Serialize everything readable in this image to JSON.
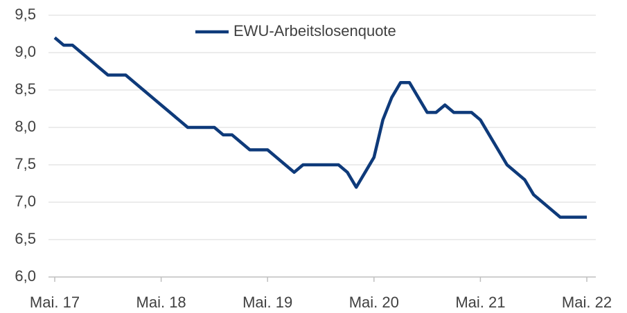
{
  "chart_data": {
    "type": "line",
    "categories": [
      "Mai. 17",
      null,
      null,
      null,
      null,
      null,
      null,
      null,
      null,
      null,
      null,
      null,
      "Mai. 18",
      null,
      null,
      null,
      null,
      null,
      null,
      null,
      null,
      null,
      null,
      null,
      "Mai. 19",
      null,
      null,
      null,
      null,
      null,
      null,
      null,
      null,
      null,
      null,
      null,
      "Mai. 20",
      null,
      null,
      null,
      null,
      null,
      null,
      null,
      null,
      null,
      null,
      null,
      "Mai. 21",
      null,
      null,
      null,
      null,
      null,
      null,
      null,
      null,
      null,
      null,
      null,
      "Mai. 22"
    ],
    "series": [
      {
        "name": "EWU-Arbeitslosenquote",
        "color": "#0e3a7a",
        "values": [
          9.2,
          9.1,
          9.1,
          9.0,
          8.9,
          8.8,
          8.7,
          8.7,
          8.7,
          8.6,
          8.5,
          8.4,
          8.3,
          8.2,
          8.1,
          8.0,
          8.0,
          8.0,
          8.0,
          7.9,
          7.9,
          7.8,
          7.7,
          7.7,
          7.7,
          7.6,
          7.5,
          7.4,
          7.5,
          7.5,
          7.5,
          7.5,
          7.5,
          7.4,
          7.2,
          7.4,
          7.6,
          8.1,
          8.4,
          8.6,
          8.6,
          8.4,
          8.2,
          8.2,
          8.3,
          8.2,
          8.2,
          8.2,
          8.1,
          7.9,
          7.7,
          7.5,
          7.4,
          7.3,
          7.1,
          7.0,
          6.9,
          6.8,
          6.8,
          6.8,
          6.8
        ]
      }
    ],
    "ylim": [
      6.0,
      9.5
    ],
    "yticks": [
      {
        "value": 6.0,
        "label": "6,0"
      },
      {
        "value": 6.5,
        "label": "6,5"
      },
      {
        "value": 7.0,
        "label": "7,0"
      },
      {
        "value": 7.5,
        "label": "7,5"
      },
      {
        "value": 8.0,
        "label": "8,0"
      },
      {
        "value": 8.5,
        "label": "8,5"
      },
      {
        "value": 9.0,
        "label": "9,0"
      },
      {
        "value": 9.5,
        "label": "9,5"
      }
    ],
    "grid": true,
    "legend": "top"
  }
}
